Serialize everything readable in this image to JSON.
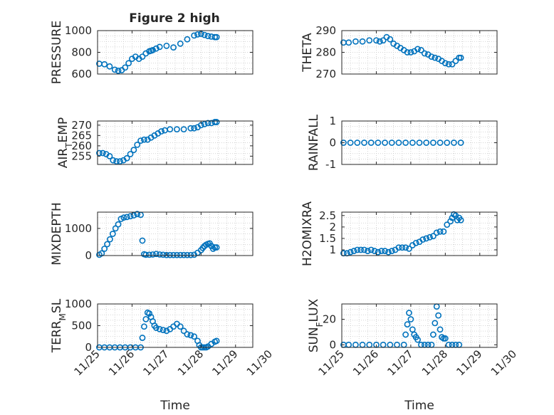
{
  "figure": {
    "title": "Figure 2 high",
    "xlabel": "Time"
  },
  "style": {
    "marker_color": "#0072BD",
    "axis_color": "#262626",
    "grid_color": "#c8c8c8"
  },
  "chart_data": [
    {
      "type": "scatter",
      "id": "pressure",
      "ylabel": "PRESSURE",
      "ylim": [
        600,
        1000
      ],
      "yticks": [
        600,
        800,
        1000
      ],
      "ytick_labels": [
        "600",
        "800",
        "1000"
      ],
      "xlim": [
        0,
        4.5
      ],
      "xticks": [
        0,
        1,
        2,
        3,
        4,
        5
      ],
      "xtick_labels": [],
      "grid": true,
      "x": [
        0.05,
        0.2,
        0.35,
        0.5,
        0.6,
        0.7,
        0.8,
        0.9,
        1.0,
        1.1,
        1.2,
        1.3,
        1.4,
        1.5,
        1.55,
        1.6,
        1.7,
        1.8,
        2.0,
        2.2,
        2.4,
        2.6,
        2.8,
        2.9,
        3.0,
        3.1,
        3.2,
        3.3,
        3.4,
        3.45
      ],
      "y": [
        695,
        690,
        670,
        640,
        630,
        635,
        660,
        700,
        740,
        760,
        740,
        760,
        790,
        810,
        815,
        820,
        835,
        850,
        860,
        845,
        880,
        920,
        955,
        965,
        970,
        960,
        950,
        945,
        940,
        940
      ]
    },
    {
      "type": "scatter",
      "id": "theta",
      "ylabel": "THETA",
      "ylim": [
        270,
        290
      ],
      "yticks": [
        270,
        280,
        290
      ],
      "ytick_labels": [
        "270",
        "280",
        "290"
      ],
      "xlim": [
        0,
        4.5
      ],
      "xticks": [
        0,
        1,
        2,
        3,
        4,
        5
      ],
      "xtick_labels": [],
      "grid": true,
      "x": [
        0.05,
        0.2,
        0.4,
        0.6,
        0.8,
        1.0,
        1.1,
        1.2,
        1.3,
        1.4,
        1.5,
        1.6,
        1.7,
        1.8,
        1.9,
        2.0,
        2.1,
        2.2,
        2.3,
        2.4,
        2.5,
        2.6,
        2.7,
        2.8,
        2.9,
        3.0,
        3.1,
        3.2,
        3.3,
        3.4,
        3.45
      ],
      "y": [
        284.5,
        284.5,
        285,
        285,
        285.5,
        285.5,
        285,
        285.5,
        287,
        286,
        284,
        283,
        282,
        281,
        280,
        280,
        280.5,
        281.5,
        281,
        279.5,
        279,
        278,
        277.5,
        277,
        276,
        275,
        274.5,
        274.5,
        276,
        277.5,
        277.5
      ]
    },
    {
      "type": "scatter",
      "id": "air_temp",
      "ylabel": "AIR",
      "ylabel_sub": "T",
      "ylabel_tail": "EMP",
      "ylim": [
        251,
        272
      ],
      "yticks": [
        255,
        260,
        265,
        270
      ],
      "ytick_labels": [
        "255",
        "260",
        "265",
        "270"
      ],
      "xlim": [
        0,
        4.5
      ],
      "xticks": [
        0,
        1,
        2,
        3,
        4,
        5
      ],
      "xtick_labels": [],
      "grid": true,
      "x": [
        0.05,
        0.15,
        0.25,
        0.35,
        0.45,
        0.55,
        0.65,
        0.75,
        0.85,
        0.95,
        1.05,
        1.15,
        1.25,
        1.35,
        1.45,
        1.55,
        1.65,
        1.75,
        1.85,
        1.95,
        2.1,
        2.3,
        2.5,
        2.7,
        2.8,
        2.9,
        3.0,
        3.1,
        3.2,
        3.3,
        3.4,
        3.45
      ],
      "y": [
        256.5,
        256.5,
        256,
        255,
        253,
        252.5,
        252.5,
        253,
        254,
        256,
        258,
        260.5,
        262.5,
        263,
        263,
        264,
        265,
        266,
        267,
        267.5,
        268,
        268,
        268,
        268.5,
        268.5,
        269,
        270,
        270.5,
        271,
        271,
        271.5,
        271.5
      ]
    },
    {
      "type": "scatter",
      "id": "rainfall",
      "ylabel": "RAINFALL",
      "ylim": [
        -1,
        1
      ],
      "yticks": [
        -1,
        0,
        1
      ],
      "ytick_labels": [
        "-1",
        "0",
        "1"
      ],
      "xlim": [
        0,
        4.5
      ],
      "xticks": [
        0,
        1,
        2,
        3,
        4,
        5
      ],
      "xtick_labels": [],
      "grid": true,
      "x": [
        0.05,
        0.25,
        0.45,
        0.65,
        0.85,
        1.05,
        1.25,
        1.45,
        1.65,
        1.85,
        2.05,
        2.25,
        2.45,
        2.65,
        2.85,
        3.05,
        3.25,
        3.45
      ],
      "y": [
        0,
        0,
        0,
        0,
        0,
        0,
        0,
        0,
        0,
        0,
        0,
        0,
        0,
        0,
        0,
        0,
        0,
        0
      ]
    },
    {
      "type": "scatter",
      "id": "mixdepth",
      "ylabel": "MIXDEPTH",
      "ylim": [
        0,
        1600
      ],
      "yticks": [
        0,
        1000
      ],
      "ytick_labels": [
        "0",
        "1000"
      ],
      "xlim": [
        0,
        4.5
      ],
      "xticks": [
        0,
        1,
        2,
        3,
        4,
        5
      ],
      "xtick_labels": [],
      "grid": true,
      "x": [
        0.05,
        0.12,
        0.2,
        0.28,
        0.36,
        0.44,
        0.52,
        0.6,
        0.68,
        0.76,
        0.85,
        0.95,
        1.05,
        1.15,
        1.25,
        1.3,
        1.35,
        1.4,
        1.5,
        1.6,
        1.7,
        1.8,
        1.9,
        2.0,
        2.1,
        2.2,
        2.3,
        2.4,
        2.5,
        2.6,
        2.7,
        2.8,
        2.9,
        3.0,
        3.05,
        3.1,
        3.15,
        3.2,
        3.25,
        3.3,
        3.35,
        3.4,
        3.45
      ],
      "y": [
        30,
        80,
        250,
        420,
        600,
        800,
        1000,
        1150,
        1350,
        1400,
        1420,
        1450,
        1480,
        1530,
        1500,
        550,
        50,
        30,
        30,
        40,
        60,
        40,
        30,
        20,
        20,
        20,
        20,
        20,
        20,
        20,
        20,
        30,
        100,
        200,
        280,
        350,
        400,
        430,
        450,
        350,
        250,
        300,
        300
      ]
    },
    {
      "type": "scatter",
      "id": "h2omixra",
      "ylabel": "H2OMIXRA",
      "ylim": [
        0.75,
        2.65
      ],
      "yticks": [
        1,
        1.5,
        2,
        2.5
      ],
      "ytick_labels": [
        "1",
        "1.5",
        "2",
        "2.5"
      ],
      "xlim": [
        0,
        4.5
      ],
      "xticks": [
        0,
        1,
        2,
        3,
        4,
        5
      ],
      "xtick_labels": [],
      "grid": true,
      "x": [
        0.05,
        0.15,
        0.25,
        0.35,
        0.45,
        0.55,
        0.65,
        0.75,
        0.85,
        0.95,
        1.05,
        1.15,
        1.25,
        1.35,
        1.45,
        1.55,
        1.65,
        1.75,
        1.85,
        1.95,
        2.05,
        2.15,
        2.25,
        2.35,
        2.45,
        2.55,
        2.65,
        2.75,
        2.85,
        2.95,
        3.05,
        3.15,
        3.2,
        3.25,
        3.3,
        3.35,
        3.4,
        3.45
      ],
      "y": [
        0.85,
        0.85,
        0.9,
        0.95,
        1.0,
        1.0,
        1.0,
        0.95,
        1.0,
        0.95,
        0.9,
        0.95,
        0.95,
        0.9,
        0.95,
        1.0,
        1.1,
        1.1,
        1.1,
        1.05,
        1.2,
        1.3,
        1.35,
        1.45,
        1.5,
        1.55,
        1.6,
        1.75,
        1.8,
        1.8,
        2.1,
        2.25,
        2.4,
        2.55,
        2.5,
        2.3,
        2.4,
        2.3
      ]
    },
    {
      "type": "scatter",
      "id": "terr_msl",
      "ylabel": "TERR",
      "ylabel_sub": "M",
      "ylabel_tail": "SL",
      "ylim": [
        0,
        1000
      ],
      "yticks": [
        0,
        500,
        1000
      ],
      "ytick_labels": [
        "0",
        "500",
        "1000"
      ],
      "xlim": [
        0,
        4.5
      ],
      "xticks": [
        0,
        1,
        2,
        3,
        4,
        5
      ],
      "xtick_labels": [
        "11/25",
        "11/26",
        "11/27",
        "11/28",
        "11/29",
        "11/30"
      ],
      "grid": true,
      "x": [
        0.05,
        0.2,
        0.35,
        0.5,
        0.65,
        0.8,
        0.95,
        1.1,
        1.25,
        1.3,
        1.35,
        1.4,
        1.45,
        1.5,
        1.55,
        1.6,
        1.65,
        1.7,
        1.8,
        1.9,
        2.0,
        2.1,
        2.2,
        2.3,
        2.4,
        2.5,
        2.6,
        2.7,
        2.8,
        2.9,
        2.95,
        3.0,
        3.05,
        3.1,
        3.15,
        3.2,
        3.3,
        3.4,
        3.45
      ],
      "y": [
        0,
        0,
        0,
        0,
        0,
        0,
        0,
        0,
        0,
        220,
        480,
        650,
        800,
        780,
        700,
        600,
        500,
        450,
        420,
        400,
        380,
        420,
        480,
        540,
        480,
        380,
        300,
        280,
        250,
        150,
        50,
        0,
        0,
        0,
        0,
        20,
        80,
        130,
        150
      ]
    },
    {
      "type": "scatter",
      "id": "sun_flux",
      "ylabel": "SUN",
      "ylabel_sub": "F",
      "ylabel_tail": "LUX",
      "ylim": [
        -2,
        32
      ],
      "yticks": [
        0,
        20
      ],
      "ytick_labels": [
        "0",
        "20"
      ],
      "xlim": [
        0,
        4.5
      ],
      "xticks": [
        0,
        1,
        2,
        3,
        4,
        5
      ],
      "xtick_labels": [
        "11/25",
        "11/26",
        "11/27",
        "11/28",
        "11/29",
        "11/30"
      ],
      "grid": true,
      "x": [
        0.05,
        0.2,
        0.4,
        0.6,
        0.8,
        1.0,
        1.2,
        1.4,
        1.6,
        1.8,
        1.85,
        1.9,
        1.95,
        2.0,
        2.05,
        2.1,
        2.15,
        2.2,
        2.3,
        2.4,
        2.5,
        2.6,
        2.65,
        2.7,
        2.75,
        2.8,
        2.85,
        2.9,
        2.95,
        3.0,
        3.1,
        3.2,
        3.3,
        3.4
      ],
      "y": [
        0,
        0,
        0,
        0,
        0,
        0,
        0,
        0,
        0,
        0,
        8,
        16,
        25,
        20,
        12,
        8,
        6,
        4,
        0,
        0,
        0,
        0,
        8,
        17,
        30,
        23,
        12,
        6,
        5,
        5,
        0,
        0,
        0,
        0
      ]
    }
  ]
}
